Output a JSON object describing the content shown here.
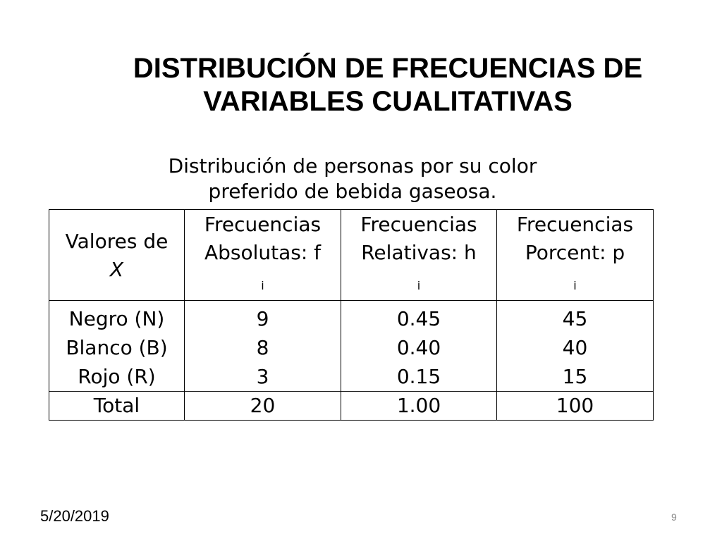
{
  "slide": {
    "title_line1": "DISTRIBUCIÓN DE FRECUENCIAS DE",
    "title_line2": "VARIABLES CUALITATIVAS",
    "subtitle_line1": "Distribución de personas por su color",
    "subtitle_line2": "preferido  de bebida gaseosa."
  },
  "table": {
    "headers": [
      {
        "line1": "Valores de",
        "line2": "X",
        "sub": ""
      },
      {
        "line1": "Frecuencias",
        "line2": "Absolutas: f",
        "sub": "i"
      },
      {
        "line1": "Frecuencias",
        "line2": "Relativas: h",
        "sub": "i"
      },
      {
        "line1": "Frecuencias",
        "line2": "Porcent: p",
        "sub": "i"
      }
    ],
    "rows": [
      [
        "Negro (N)",
        "9",
        "0.45",
        "45"
      ],
      [
        "Blanco (B)",
        "8",
        "0.40",
        "40"
      ],
      [
        "Rojo (R)",
        "3",
        "0.15",
        "15"
      ]
    ],
    "total": [
      "Total",
      "20",
      "1.00",
      "100"
    ]
  },
  "footer": {
    "date": "5/20/2019",
    "page_number": "9"
  }
}
